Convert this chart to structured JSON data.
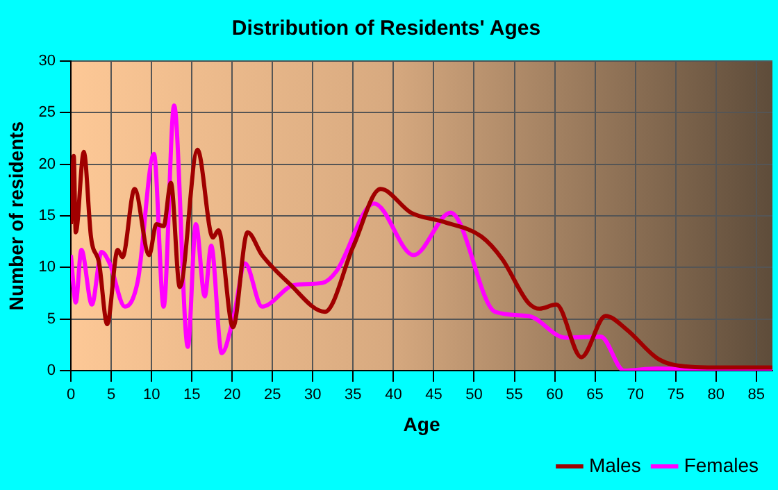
{
  "chart_data": {
    "type": "line",
    "title": "Distribution of Residents' Ages",
    "xlabel": "Age",
    "ylabel": "Number of residents",
    "xlim": [
      0,
      87
    ],
    "xticks": [
      0,
      5,
      10,
      15,
      20,
      25,
      30,
      35,
      40,
      45,
      50,
      55,
      60,
      65,
      70,
      75,
      80,
      85
    ],
    "ylim": [
      0,
      30
    ],
    "yticks": [
      0,
      5,
      10,
      15,
      20,
      25,
      30
    ],
    "grid": true,
    "legend": "bottom right",
    "marker": "none",
    "line_style": "solid",
    "series": [
      {
        "name": "Males",
        "color": "#a00000",
        "x": [
          0,
          0.35,
          0.6,
          1.6,
          2.5,
          3.5,
          4.5,
          5.8,
          6.4,
          7.9,
          9.7,
          10.6,
          11.5,
          12.4,
          13.5,
          15.7,
          17.6,
          18.3,
          20.1,
          21.9,
          23.7,
          27,
          31.5,
          35,
          38.4,
          42.2,
          46.3,
          50.9,
          53.5,
          56.7,
          58.1,
          60.2,
          63.3,
          66.3,
          68.9,
          72.9,
          76.3,
          80,
          87
        ],
        "values": [
          14.2,
          20.8,
          13.4,
          21.2,
          12.9,
          10.4,
          4.5,
          11.7,
          11,
          17.6,
          11.2,
          14.2,
          14,
          18.2,
          8.1,
          21.4,
          12.9,
          13.6,
          4.2,
          13.4,
          11.2,
          8.5,
          5.7,
          12,
          17.6,
          15.3,
          14.4,
          13,
          10.8,
          6.6,
          6,
          6.4,
          1.3,
          5.3,
          4,
          1.1,
          0.4,
          0.3,
          0.3
        ]
      },
      {
        "name": "Females",
        "color": "#ff00ff",
        "x": [
          0,
          0.6,
          1.3,
          2.6,
          3.8,
          4.8,
          6.7,
          8.3,
          10.3,
          11.5,
          12.8,
          14.5,
          15.5,
          16.6,
          17.4,
          18.7,
          20.2,
          21.6,
          23.7,
          27.7,
          31.2,
          32.9,
          37.6,
          42.5,
          47.1,
          52.6,
          56.7,
          61.3,
          65.7,
          68.6,
          72.6,
          79.5,
          87
        ],
        "values": [
          11.2,
          6.6,
          11.7,
          6.4,
          11.5,
          10.4,
          6.2,
          8.7,
          21,
          6.2,
          25.7,
          2.3,
          14.2,
          7.2,
          12.1,
          1.7,
          5.3,
          10.4,
          6.2,
          8.3,
          8.5,
          9.6,
          16.2,
          11.2,
          15.3,
          5.7,
          5.3,
          3.2,
          3.3,
          0,
          0.2,
          0.1,
          0.1
        ]
      }
    ]
  }
}
